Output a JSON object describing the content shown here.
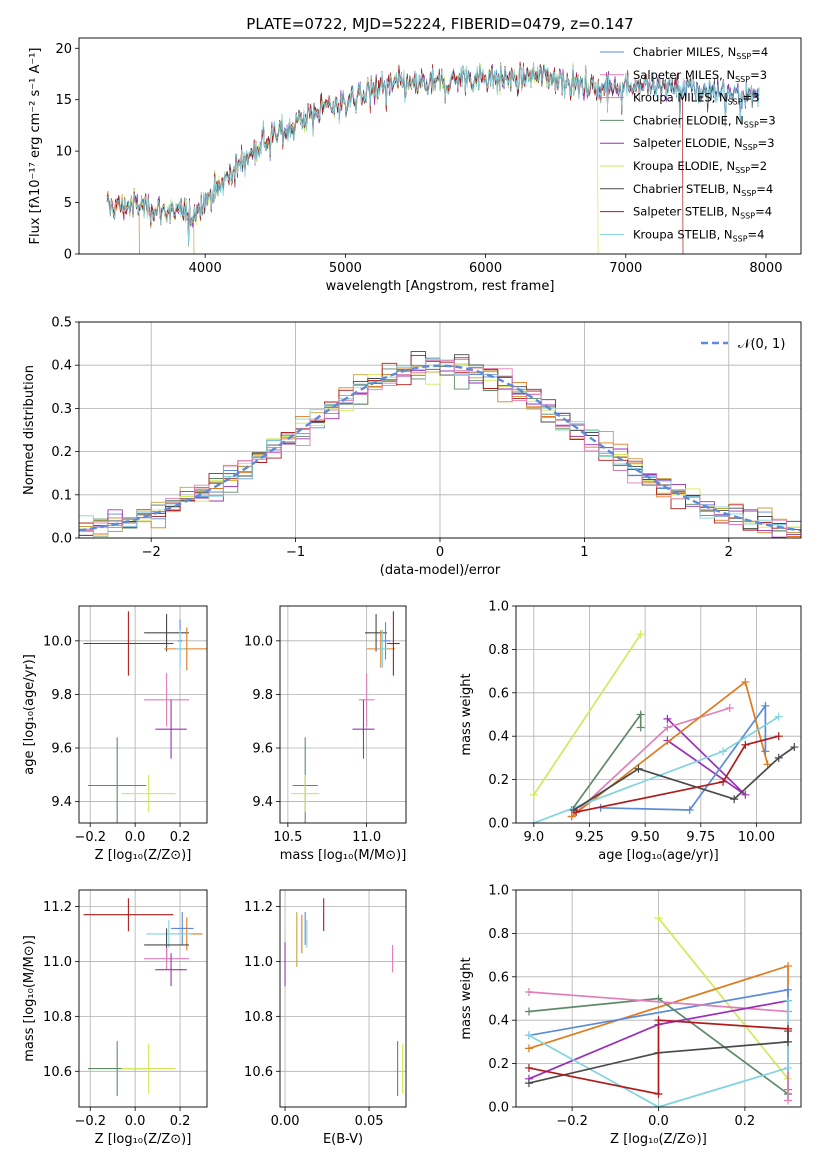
{
  "colors": {
    "chabrier_miles": "#5b8bd9",
    "salpeter_miles": "#e07b1f",
    "kroupa_miles": "#c9a23a",
    "chabrier_elodie": "#5f8a68",
    "salpeter_elodie": "#9b30b8",
    "kroupa_elodie": "#d4e85a",
    "chabrier_stelib": "#4a4a4a",
    "salpeter_stelib": "#b01b1b",
    "kroupa_stelib": "#7fd4e0",
    "pink": "#e07fb8",
    "normal": "#5b8bd9"
  },
  "chart_data": [
    {
      "id": "spectrum",
      "type": "line",
      "title": "PLATE=0722, MJD=52224, FIBERID=0479, z=0.147",
      "xlabel": "wavelength [Angstrom, rest frame]",
      "ylabel": "Flux [fλ10⁻¹⁷ erg cm⁻² s⁻¹ A⁻¹]",
      "xlim": [
        3100,
        8250
      ],
      "ylim": [
        0,
        21
      ],
      "xticks": [
        "4000",
        "5000",
        "6000",
        "7000",
        "8000"
      ],
      "yticks": [
        "0",
        "5",
        "10",
        "15",
        "20"
      ],
      "legend": [
        {
          "name": "Chabrier MILES, N",
          "sub": "SSP",
          "tail": "=4",
          "color": "chabrier_miles"
        },
        {
          "name": "Salpeter MILES, N",
          "sub": "SSP",
          "tail": "=3",
          "color": "pink"
        },
        {
          "name": "Kroupa MILES, N",
          "sub": "SSP",
          "tail": "=3",
          "color": "kroupa_miles"
        },
        {
          "name": "Chabrier ELODIE, N",
          "sub": "SSP",
          "tail": "=3",
          "color": "chabrier_elodie"
        },
        {
          "name": "Salpeter ELODIE, N",
          "sub": "SSP",
          "tail": "=3",
          "color": "salpeter_elodie"
        },
        {
          "name": "Kroupa ELODIE, N",
          "sub": "SSP",
          "tail": "=2",
          "color": "kroupa_elodie"
        },
        {
          "name": "Chabrier STELIB, N",
          "sub": "SSP",
          "tail": "=4",
          "color": "chabrier_stelib"
        },
        {
          "name": "Salpeter STELIB, N",
          "sub": "SSP",
          "tail": "=4",
          "color": "salpeter_stelib"
        },
        {
          "name": "Kroupa STELIB, N",
          "sub": "SSP",
          "tail": "=4",
          "color": "kroupa_stelib"
        }
      ],
      "continuum": [
        [
          3300,
          4.6
        ],
        [
          3500,
          4.8
        ],
        [
          3700,
          4.2
        ],
        [
          3900,
          3.8
        ],
        [
          4000,
          5.2
        ],
        [
          4200,
          8.0
        ],
        [
          4400,
          10.8
        ],
        [
          4600,
          12.4
        ],
        [
          4800,
          14.0
        ],
        [
          5000,
          14.8
        ],
        [
          5200,
          16.2
        ],
        [
          5400,
          16.5
        ],
        [
          5600,
          16.4
        ],
        [
          5800,
          17.0
        ],
        [
          6000,
          17.3
        ],
        [
          6200,
          17.0
        ],
        [
          6400,
          17.4
        ],
        [
          6600,
          16.8
        ],
        [
          6800,
          16.2
        ],
        [
          7000,
          16.5
        ],
        [
          7200,
          16.3
        ],
        [
          7400,
          16.1
        ],
        [
          7600,
          15.8
        ],
        [
          7800,
          15.6
        ],
        [
          7950,
          15.5
        ]
      ],
      "dropouts": [
        {
          "x": 3530,
          "color": "salpeter_miles"
        },
        {
          "x": 3920,
          "color": "kroupa_miles"
        },
        {
          "x": 6800,
          "color": "kroupa_elodie"
        },
        {
          "x": 7410,
          "color": "salpeter_stelib"
        }
      ]
    },
    {
      "id": "residuals",
      "type": "line",
      "xlabel": "(data-model)/error",
      "ylabel": "Normed distribution",
      "xlim": [
        -2.5,
        2.5
      ],
      "ylim": [
        0,
        0.5
      ],
      "xticks": [
        "−2",
        "−1",
        "0",
        "1",
        "2"
      ],
      "yticks": [
        "0.0",
        "0.1",
        "0.2",
        "0.3",
        "0.4",
        "0.5"
      ],
      "legend": [
        {
          "name": "𝒩(0, 1)",
          "color": "normal"
        }
      ],
      "bin_width": 0.1
    },
    {
      "id": "age_vs_Z",
      "type": "scatter",
      "xlabel": "Z [log₁₀(Z/Z⊙)]",
      "ylabel": "age  [log₁₀(age/yr)]",
      "xlim": [
        -0.25,
        0.32
      ],
      "ylim": [
        9.32,
        10.13
      ],
      "xticks": [
        "−0.2",
        "0.0",
        "0.2"
      ],
      "yticks": [
        "9.4",
        "9.6",
        "9.8",
        "10.0"
      ],
      "points": [
        {
          "x": 0.14,
          "y": 10.03,
          "xerr": 0.1,
          "yerr": 0.07,
          "color": "chabrier_stelib"
        },
        {
          "x": 0.2,
          "y": 10.0,
          "xerr": 0.01,
          "yerr": 0.08,
          "color": "chabrier_miles"
        },
        {
          "x": 0.23,
          "y": 9.97,
          "xerr": 0.1,
          "yerr": 0.08,
          "color": "salpeter_miles"
        },
        {
          "x": -0.03,
          "y": 9.99,
          "xerr": 0.2,
          "yerr": 0.12,
          "color": "salpeter_stelib"
        },
        {
          "x": 0.2,
          "y": 9.97,
          "xerr": 0.02,
          "yerr": 0.07,
          "color": "kroupa_stelib"
        },
        {
          "x": 0.14,
          "y": 9.78,
          "xerr": 0.1,
          "yerr": 0.1,
          "color": "pink"
        },
        {
          "x": 0.16,
          "y": 9.67,
          "xerr": 0.07,
          "yerr": 0.11,
          "color": "salpeter_elodie"
        },
        {
          "x": -0.08,
          "y": 9.46,
          "xerr": 0.13,
          "yerr": 0.18,
          "color": "chabrier_elodie"
        },
        {
          "x": 0.06,
          "y": 9.43,
          "xerr": 0.12,
          "yerr": 0.07,
          "color": "kroupa_elodie"
        }
      ]
    },
    {
      "id": "age_vs_mass",
      "type": "scatter",
      "xlabel": "mass [log₁₀(M/M⊙)]",
      "ylabel": "",
      "xlim": [
        10.45,
        11.25
      ],
      "ylim": [
        9.32,
        10.13
      ],
      "xticks": [
        "10.5",
        "11.0"
      ],
      "yticks": [
        "9.4",
        "9.6",
        "9.8",
        "10.0"
      ],
      "points": [
        {
          "x": 11.06,
          "y": 10.03,
          "xerr": 0.07,
          "yerr": 0.07,
          "color": "chabrier_stelib"
        },
        {
          "x": 11.12,
          "y": 10.0,
          "xerr": 0.03,
          "yerr": 0.07,
          "color": "chabrier_miles"
        },
        {
          "x": 11.09,
          "y": 9.97,
          "xerr": 0.09,
          "yerr": 0.07,
          "color": "salpeter_miles"
        },
        {
          "x": 11.17,
          "y": 9.99,
          "xerr": 0.04,
          "yerr": 0.12,
          "color": "salpeter_stelib"
        },
        {
          "x": 11.1,
          "y": 9.97,
          "xerr": 0.03,
          "yerr": 0.07,
          "color": "kroupa_stelib"
        },
        {
          "x": 11.0,
          "y": 9.78,
          "xerr": 0.05,
          "yerr": 0.1,
          "color": "pink"
        },
        {
          "x": 10.98,
          "y": 9.67,
          "xerr": 0.07,
          "yerr": 0.11,
          "color": "salpeter_elodie"
        },
        {
          "x": 10.61,
          "y": 9.46,
          "xerr": 0.08,
          "yerr": 0.18,
          "color": "chabrier_elodie"
        },
        {
          "x": 10.61,
          "y": 9.43,
          "xerr": 0.09,
          "yerr": 0.07,
          "color": "kroupa_elodie"
        }
      ]
    },
    {
      "id": "weight_vs_age",
      "type": "line",
      "xlabel": "age  [log₁₀(age/yr)]",
      "ylabel": "mass weight",
      "xlim": [
        8.92,
        10.2
      ],
      "ylim": [
        0,
        1.0
      ],
      "xticks": [
        "9.0",
        "9.25",
        "9.50",
        "9.75",
        "10.00"
      ],
      "yticks": [
        "0.0",
        "0.2",
        "0.4",
        "0.6",
        "0.8",
        "1.0"
      ],
      "series": [
        {
          "color": "kroupa_elodie",
          "points": [
            [
              9.0,
              0.13
            ],
            [
              9.48,
              0.87
            ]
          ]
        },
        {
          "color": "chabrier_elodie",
          "points": [
            [
              9.17,
              0.06
            ],
            [
              9.48,
              0.5
            ],
            [
              9.48,
              0.44
            ]
          ]
        },
        {
          "color": "salpeter_elodie",
          "points": [
            [
              9.6,
              0.48
            ],
            [
              9.95,
              0.13
            ],
            [
              9.6,
              0.38
            ]
          ]
        },
        {
          "color": "pink",
          "points": [
            [
              9.17,
              0.03
            ],
            [
              9.6,
              0.44
            ],
            [
              9.88,
              0.53
            ]
          ]
        },
        {
          "color": "salpeter_miles",
          "points": [
            [
              9.17,
              0.03
            ],
            [
              9.95,
              0.65
            ],
            [
              10.05,
              0.27
            ]
          ]
        },
        {
          "color": "chabrier_miles",
          "points": [
            [
              9.3,
              0.07
            ],
            [
              9.7,
              0.06
            ],
            [
              10.04,
              0.54
            ],
            [
              10.04,
              0.33
            ]
          ]
        },
        {
          "color": "kroupa_stelib",
          "points": [
            [
              9.0,
              0.0
            ],
            [
              9.85,
              0.33
            ],
            [
              10.1,
              0.49
            ]
          ]
        },
        {
          "color": "chabrier_stelib",
          "points": [
            [
              9.18,
              0.06
            ],
            [
              9.47,
              0.25
            ],
            [
              9.9,
              0.11
            ],
            [
              10.1,
              0.3
            ],
            [
              10.17,
              0.35
            ]
          ]
        },
        {
          "color": "salpeter_stelib",
          "points": [
            [
              9.19,
              0.05
            ],
            [
              9.85,
              0.19
            ],
            [
              9.95,
              0.36
            ],
            [
              10.1,
              0.4
            ]
          ]
        }
      ]
    },
    {
      "id": "mass_vs_Z",
      "type": "scatter",
      "xlabel": "Z [log₁₀(Z/Z⊙)]",
      "ylabel": "mass [log₁₀(M/M⊙)]",
      "xlim": [
        -0.25,
        0.32
      ],
      "ylim": [
        10.47,
        11.26
      ],
      "xticks": [
        "−0.2",
        "0.0",
        "0.2"
      ],
      "yticks": [
        "10.6",
        "10.8",
        "11.0",
        "11.2"
      ],
      "points": [
        {
          "x": -0.03,
          "y": 11.17,
          "xerr": 0.2,
          "yerr": 0.06,
          "color": "salpeter_stelib"
        },
        {
          "x": 0.21,
          "y": 11.12,
          "xerr": 0.05,
          "yerr": 0.06,
          "color": "chabrier_miles"
        },
        {
          "x": 0.23,
          "y": 11.1,
          "xerr": 0.07,
          "yerr": 0.06,
          "color": "salpeter_miles"
        },
        {
          "x": 0.15,
          "y": 11.1,
          "xerr": 0.1,
          "yerr": 0.05,
          "color": "kroupa_stelib"
        },
        {
          "x": 0.14,
          "y": 11.06,
          "xerr": 0.1,
          "yerr": 0.06,
          "color": "chabrier_stelib"
        },
        {
          "x": 0.14,
          "y": 11.01,
          "xerr": 0.1,
          "yerr": 0.04,
          "color": "pink"
        },
        {
          "x": 0.16,
          "y": 10.97,
          "xerr": 0.07,
          "yerr": 0.06,
          "color": "salpeter_elodie"
        },
        {
          "x": -0.08,
          "y": 10.61,
          "xerr": 0.13,
          "yerr": 0.1,
          "color": "chabrier_elodie"
        },
        {
          "x": 0.06,
          "y": 10.61,
          "xerr": 0.12,
          "yerr": 0.09,
          "color": "kroupa_elodie"
        }
      ]
    },
    {
      "id": "mass_vs_ebv",
      "type": "scatter",
      "xlabel": "E(B-V)",
      "ylabel": "",
      "xlim": [
        -0.003,
        0.072
      ],
      "ylim": [
        10.47,
        11.26
      ],
      "xticks": [
        "0.00",
        "0.05"
      ],
      "yticks": [
        "10.6",
        "10.8",
        "11.0",
        "11.2"
      ],
      "points": [
        {
          "x": 0.0,
          "y": 10.99,
          "xerr": 0,
          "yerr": 0.08,
          "color": "salpeter_elodie"
        },
        {
          "x": 0.007,
          "y": 11.08,
          "xerr": 0,
          "yerr": 0.1,
          "color": "kroupa_miles"
        },
        {
          "x": 0.01,
          "y": 11.1,
          "xerr": 0,
          "yerr": 0.07,
          "color": "salpeter_miles"
        },
        {
          "x": 0.012,
          "y": 11.12,
          "xerr": 0,
          "yerr": 0.06,
          "color": "chabrier_miles"
        },
        {
          "x": 0.013,
          "y": 11.1,
          "xerr": 0,
          "yerr": 0.05,
          "color": "kroupa_stelib"
        },
        {
          "x": 0.023,
          "y": 11.17,
          "xerr": 0,
          "yerr": 0.06,
          "color": "salpeter_stelib"
        },
        {
          "x": 0.064,
          "y": 11.01,
          "xerr": 0,
          "yerr": 0.05,
          "color": "pink"
        },
        {
          "x": 0.067,
          "y": 10.61,
          "xerr": 0,
          "yerr": 0.1,
          "color": "chabrier_elodie"
        },
        {
          "x": 0.07,
          "y": 10.61,
          "xerr": 0,
          "yerr": 0.09,
          "color": "kroupa_elodie"
        }
      ]
    },
    {
      "id": "weight_vs_Z",
      "type": "line",
      "xlabel": "Z [log₁₀(Z/Z⊙)]",
      "ylabel": "mass weight",
      "xlim": [
        -0.33,
        0.33
      ],
      "ylim": [
        0,
        1.0
      ],
      "xticks": [
        "−0.2",
        "0.0",
        "0.2"
      ],
      "yticks": [
        "0.0",
        "0.2",
        "0.4",
        "0.6",
        "0.8",
        "1.0"
      ],
      "series": [
        {
          "color": "kroupa_elodie",
          "points": [
            [
              0.0,
              0.87
            ],
            [
              0.3,
              0.13
            ]
          ]
        },
        {
          "color": "salpeter_miles",
          "points": [
            [
              -0.3,
              0.27
            ],
            [
              0.3,
              0.65
            ],
            [
              0.3,
              0.08
            ]
          ]
        },
        {
          "color": "chabrier_miles",
          "points": [
            [
              -0.3,
              0.33
            ],
            [
              0.3,
              0.54
            ],
            [
              0.3,
              0.06
            ]
          ]
        },
        {
          "color": "chabrier_elodie",
          "points": [
            [
              -0.3,
              0.44
            ],
            [
              0.0,
              0.5
            ],
            [
              0.3,
              0.06
            ]
          ]
        },
        {
          "color": "pink",
          "points": [
            [
              -0.3,
              0.53
            ],
            [
              0.3,
              0.44
            ],
            [
              0.3,
              0.03
            ]
          ]
        },
        {
          "color": "salpeter_elodie",
          "points": [
            [
              -0.3,
              0.13
            ],
            [
              0.0,
              0.38
            ],
            [
              0.3,
              0.49
            ]
          ]
        },
        {
          "color": "kroupa_stelib",
          "points": [
            [
              -0.3,
              0.33
            ],
            [
              0.0,
              0.0
            ],
            [
              0.3,
              0.18
            ],
            [
              0.3,
              0.49
            ]
          ]
        },
        {
          "color": "chabrier_stelib",
          "points": [
            [
              -0.3,
              0.11
            ],
            [
              0.0,
              0.25
            ],
            [
              0.3,
              0.3
            ],
            [
              0.3,
              0.35
            ]
          ]
        },
        {
          "color": "salpeter_stelib",
          "points": [
            [
              -0.3,
              0.18
            ],
            [
              0.0,
              0.06
            ],
            [
              0.0,
              0.4
            ],
            [
              0.3,
              0.36
            ]
          ]
        }
      ]
    }
  ]
}
